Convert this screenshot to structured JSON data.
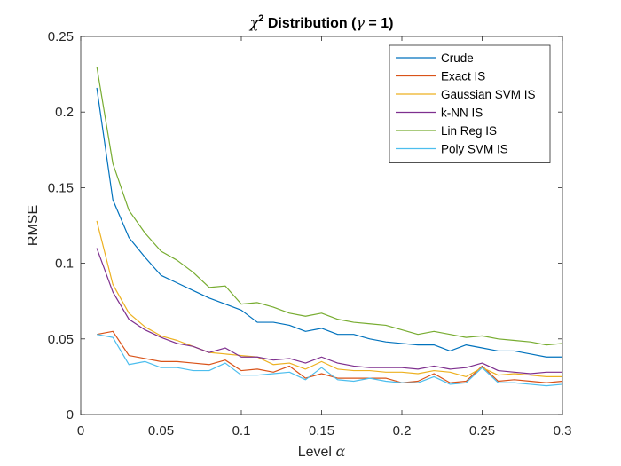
{
  "chart_data": {
    "type": "line",
    "title": {
      "symbol": "χ",
      "superscript": "2",
      "text": " Distribution (",
      "param_symbol": "γ",
      "param_text": " = 1)"
    },
    "xlabel": {
      "text": "Level ",
      "symbol": "α"
    },
    "ylabel": "RMSE",
    "xlim": [
      0,
      0.3
    ],
    "ylim": [
      0,
      0.25
    ],
    "xticks": [
      0,
      0.05,
      0.1,
      0.15,
      0.2,
      0.25,
      0.3
    ],
    "xtick_labels": [
      "0",
      "0.05",
      "0.1",
      "0.15",
      "0.2",
      "0.25",
      "0.3"
    ],
    "yticks": [
      0,
      0.05,
      0.1,
      0.15,
      0.2,
      0.25
    ],
    "ytick_labels": [
      "0",
      "0.05",
      "0.1",
      "0.15",
      "0.2",
      "0.25"
    ],
    "grid": false,
    "legend_position": "top-right",
    "x": [
      0.01,
      0.02,
      0.03,
      0.04,
      0.05,
      0.06,
      0.07,
      0.08,
      0.09,
      0.1,
      0.11,
      0.12,
      0.13,
      0.14,
      0.15,
      0.16,
      0.17,
      0.18,
      0.19,
      0.2,
      0.21,
      0.22,
      0.23,
      0.24,
      0.25,
      0.26,
      0.27,
      0.28,
      0.29,
      0.3
    ],
    "series": [
      {
        "name": "Crude",
        "color": "#0072BD",
        "values": [
          0.216,
          0.142,
          0.117,
          0.104,
          0.092,
          0.087,
          0.082,
          0.077,
          0.073,
          0.069,
          0.061,
          0.061,
          0.059,
          0.055,
          0.057,
          0.053,
          0.053,
          0.05,
          0.048,
          0.047,
          0.046,
          0.046,
          0.042,
          0.046,
          0.044,
          0.042,
          0.042,
          0.04,
          0.038,
          0.038
        ]
      },
      {
        "name": "Exact IS",
        "color": "#D95319",
        "values": [
          0.053,
          0.055,
          0.039,
          0.037,
          0.035,
          0.035,
          0.034,
          0.033,
          0.036,
          0.029,
          0.03,
          0.028,
          0.032,
          0.024,
          0.027,
          0.024,
          0.024,
          0.024,
          0.024,
          0.021,
          0.022,
          0.027,
          0.021,
          0.022,
          0.032,
          0.022,
          0.023,
          0.022,
          0.021,
          0.022
        ]
      },
      {
        "name": "Gaussian SVM IS",
        "color": "#EDB120",
        "values": [
          0.128,
          0.086,
          0.067,
          0.058,
          0.052,
          0.049,
          0.045,
          0.041,
          0.04,
          0.039,
          0.038,
          0.033,
          0.034,
          0.03,
          0.035,
          0.03,
          0.029,
          0.029,
          0.028,
          0.028,
          0.027,
          0.029,
          0.028,
          0.025,
          0.031,
          0.026,
          0.027,
          0.026,
          0.025,
          0.025
        ]
      },
      {
        "name": "k-NN IS",
        "color": "#7E2F8E",
        "values": [
          0.11,
          0.081,
          0.063,
          0.056,
          0.051,
          0.047,
          0.045,
          0.041,
          0.044,
          0.038,
          0.038,
          0.036,
          0.037,
          0.034,
          0.038,
          0.034,
          0.032,
          0.031,
          0.031,
          0.031,
          0.03,
          0.032,
          0.03,
          0.031,
          0.034,
          0.029,
          0.028,
          0.027,
          0.028,
          0.028
        ]
      },
      {
        "name": "Lin Reg IS",
        "color": "#77AC30",
        "values": [
          0.23,
          0.166,
          0.135,
          0.12,
          0.108,
          0.102,
          0.094,
          0.084,
          0.085,
          0.073,
          0.074,
          0.071,
          0.067,
          0.065,
          0.067,
          0.063,
          0.061,
          0.06,
          0.059,
          0.056,
          0.053,
          0.055,
          0.053,
          0.051,
          0.052,
          0.05,
          0.049,
          0.048,
          0.046,
          0.047
        ]
      },
      {
        "name": "Poly SVM IS",
        "color": "#4DBEEE",
        "values": [
          0.053,
          0.051,
          0.033,
          0.035,
          0.031,
          0.031,
          0.029,
          0.029,
          0.034,
          0.026,
          0.026,
          0.027,
          0.028,
          0.023,
          0.031,
          0.023,
          0.022,
          0.024,
          0.022,
          0.021,
          0.021,
          0.025,
          0.02,
          0.021,
          0.031,
          0.021,
          0.021,
          0.02,
          0.019,
          0.02
        ]
      }
    ]
  }
}
